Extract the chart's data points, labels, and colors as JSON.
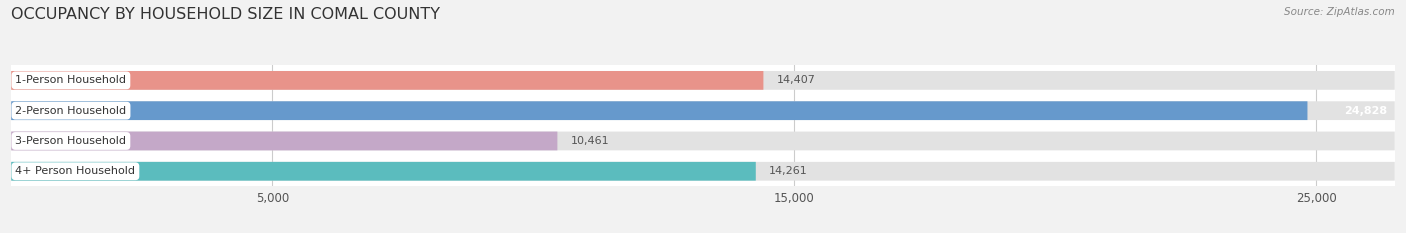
{
  "title": "OCCUPANCY BY HOUSEHOLD SIZE IN COMAL COUNTY",
  "source": "Source: ZipAtlas.com",
  "categories": [
    "1-Person Household",
    "2-Person Household",
    "3-Person Household",
    "4+ Person Household"
  ],
  "values": [
    14407,
    24828,
    10461,
    14261
  ],
  "bar_colors": [
    "#e8938a",
    "#6699cc",
    "#c4a8c8",
    "#5bbcbe"
  ],
  "label_colors": [
    "#555555",
    "#ffffff",
    "#555555",
    "#555555"
  ],
  "bg_color": "#f2f2f2",
  "bar_bg_color": "#e2e2e2",
  "plot_bg_color": "#ffffff",
  "xlim": [
    0,
    26500
  ],
  "xticks": [
    5000,
    15000,
    25000
  ],
  "xtick_labels": [
    "5,000",
    "15,000",
    "25,000"
  ],
  "title_fontsize": 11.5,
  "bar_height": 0.62,
  "figsize": [
    14.06,
    2.33
  ],
  "dpi": 100
}
